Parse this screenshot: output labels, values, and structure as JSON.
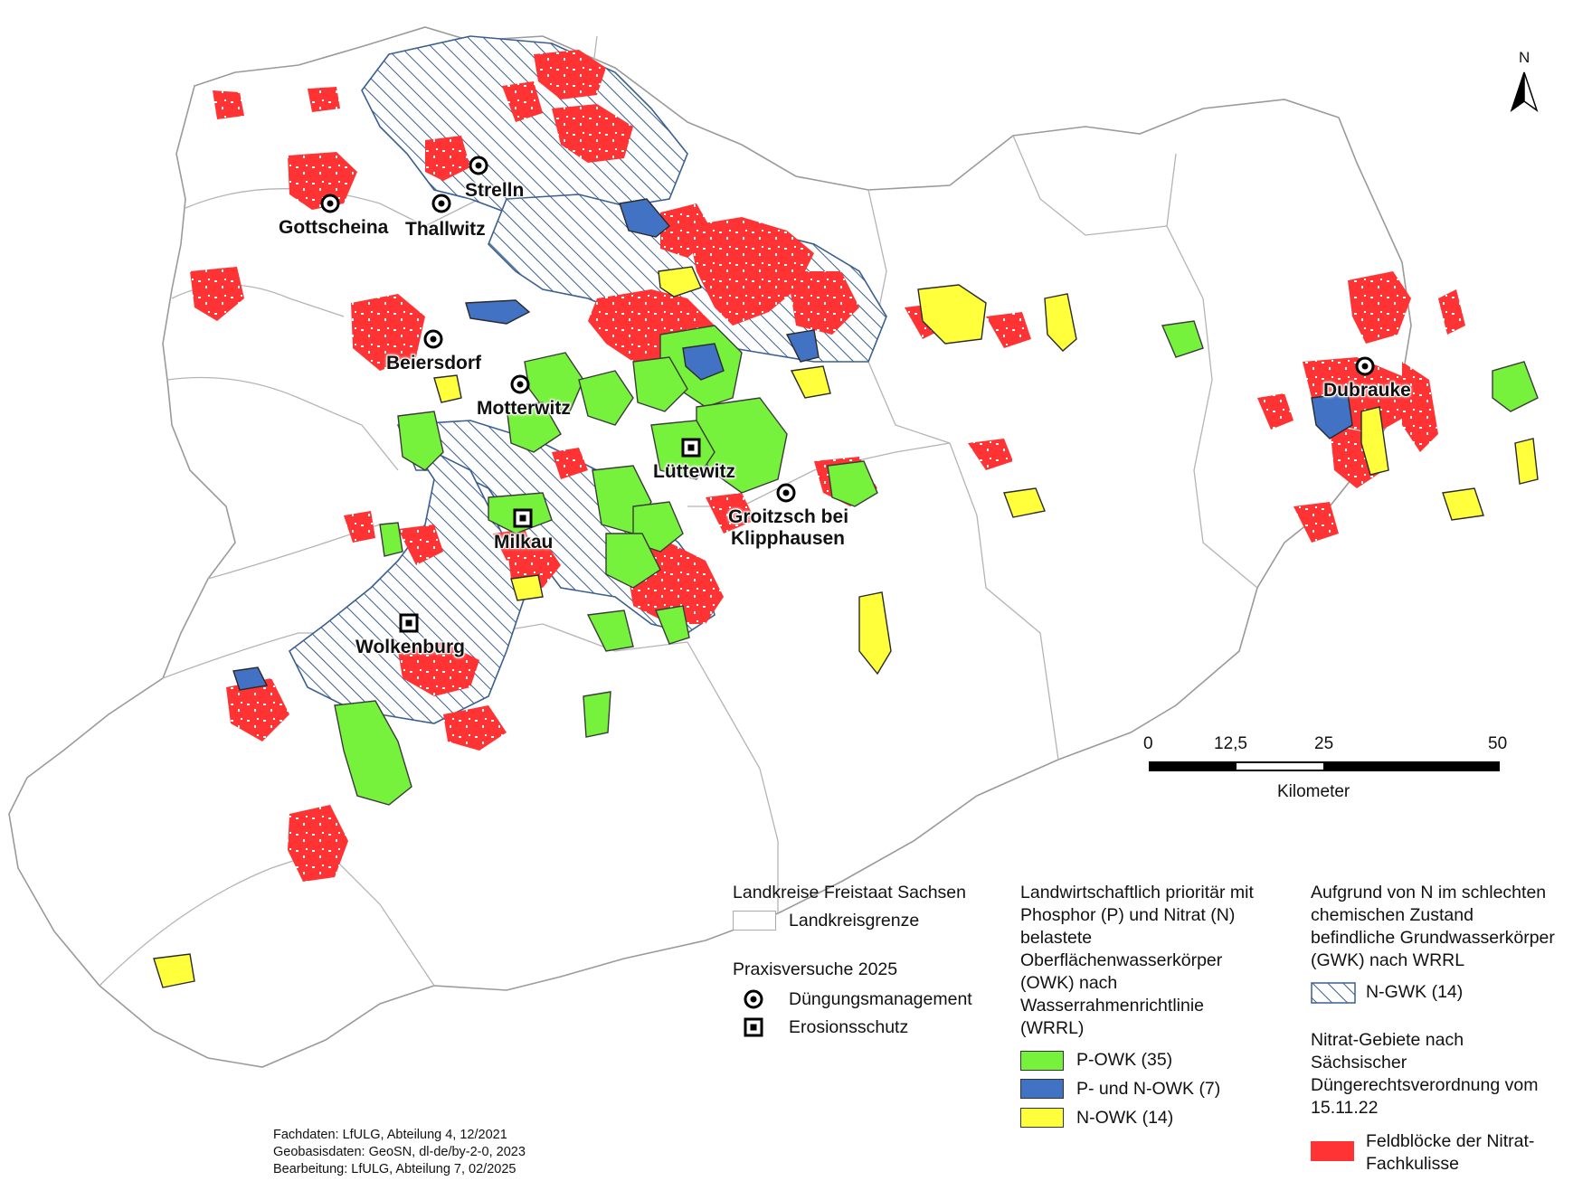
{
  "sites": {
    "duengung": [
      "Strelln",
      "Gottscheina",
      "Thallwitz",
      "Beiersdorf",
      "Motterwitz",
      "Groitzsch bei",
      "Klipphausen",
      "Dubrauke"
    ],
    "erosion": [
      "Lüttewitz",
      "Milkau",
      "Wolkenburg"
    ]
  },
  "north": "N",
  "scale": {
    "ticks": [
      "0",
      "12,5",
      "25",
      "50"
    ],
    "unit": "Kilometer"
  },
  "legend": {
    "landkreise": {
      "title": "Landkreise Freistaat Sachsen",
      "boundary": "Landkreisgrenze"
    },
    "praxis": {
      "title": "Praxisversuche 2025",
      "duengung": "Düngungsmanagement",
      "erosion": "Erosionsschutz"
    },
    "owk": {
      "title": [
        "Landwirtschaftlich prioritär mit",
        "Phosphor (P) und Nitrat (N)",
        "belastete",
        "Oberflächenwasserkörper",
        "(OWK) nach",
        "Wasserrahmenrichtlinie",
        "(WRRL)"
      ],
      "items": [
        {
          "label": "P-OWK (35)",
          "color": "#77f23c"
        },
        {
          "label": "P- und N-OWK (7)",
          "color": "#4272c4"
        },
        {
          "label": "N-OWK (14)",
          "color": "#ffff3c"
        }
      ]
    },
    "gwk": {
      "title": [
        "Aufgrund von N im schlechten",
        "chemischen Zustand",
        "befindliche Grundwasserkörper",
        "(GWK) nach WRRL"
      ],
      "item": "N-GWK (14)"
    },
    "nitrat": {
      "title": [
        "Nitrat-Gebiete nach",
        "Sächsischer",
        "Düngerechtsverordnung vom",
        "15.11.22"
      ],
      "item": [
        "Feldblöcke der Nitrat-",
        "Fachkulisse"
      ],
      "color": "#ff3333"
    }
  },
  "credits": [
    "Fachdaten: LfULG, Abteilung 4, 12/2021",
    "Geobasisdaten: GeoSN, dl-de/by-2-0, 2023",
    "Bearbeitung: LfULG, Abteilung 7, 02/2025"
  ]
}
